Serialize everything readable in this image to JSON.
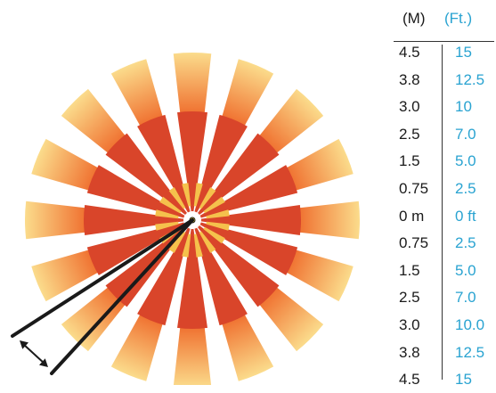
{
  "headers": {
    "meters": "(M)",
    "feet": "(Ft.)"
  },
  "scale_rows": [
    {
      "m": "4.5",
      "ft": "15"
    },
    {
      "m": "3.8",
      "ft": "12.5"
    },
    {
      "m": "3.0",
      "ft": "10"
    },
    {
      "m": "2.5",
      "ft": "7.0"
    },
    {
      "m": "1.5",
      "ft": "5.0"
    },
    {
      "m": "0.75",
      "ft": "2.5"
    },
    {
      "m": "0 m",
      "ft": "0 ft"
    },
    {
      "m": "0.75",
      "ft": "2.5"
    },
    {
      "m": "1.5",
      "ft": "5.0"
    },
    {
      "m": "2.5",
      "ft": "7.0"
    },
    {
      "m": "3.0",
      "ft": "10.0"
    },
    {
      "m": "3.8",
      "ft": "12.5"
    },
    {
      "m": "4.5",
      "ft": "15"
    }
  ],
  "colors": {
    "ray_red": "#d9452a",
    "ray_orange": "#ef6a2a",
    "ray_pale": "#fbdc8c",
    "inner_yellow": "#f5c14c",
    "feet_text": "#29a3d1",
    "lines": "#1a1a1a"
  }
}
